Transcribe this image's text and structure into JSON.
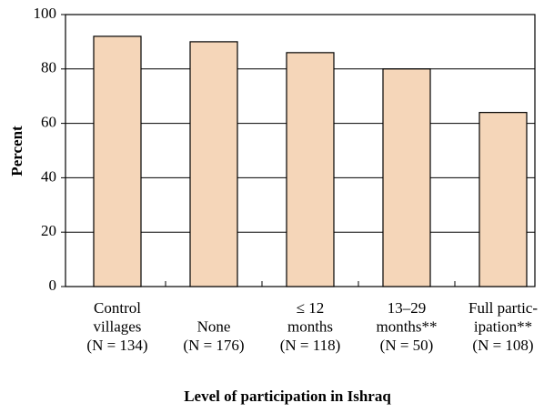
{
  "chart_data": {
    "type": "bar",
    "categories": [
      [
        "Control",
        "villages",
        "(N = 134)"
      ],
      [
        "None",
        "(N = 176)"
      ],
      [
        "≤ 12",
        "months",
        "(N = 118)"
      ],
      [
        "13–29",
        "months**",
        "(N = 50)"
      ],
      [
        "Full partic-",
        "ipation**",
        "(N = 108)"
      ]
    ],
    "values": [
      92,
      90,
      86,
      80,
      64
    ],
    "color": "#f5d6b9",
    "xlabel": "Level of participation in Ishraq",
    "ylabel": "Percent",
    "ylim": [
      0,
      100
    ],
    "yticks": [
      0,
      20,
      40,
      60,
      80,
      100
    ],
    "grid": true
  }
}
